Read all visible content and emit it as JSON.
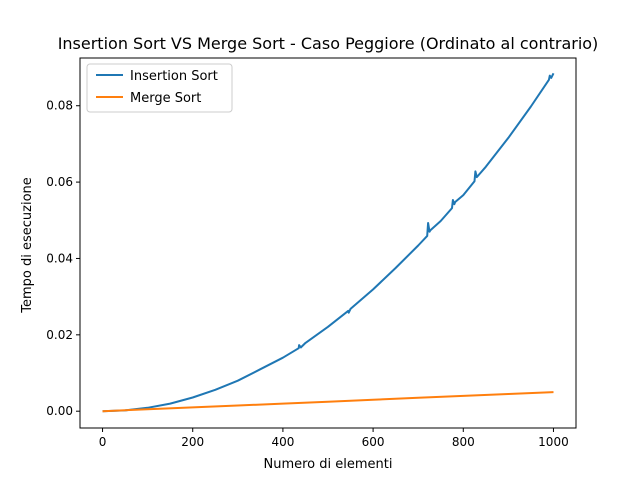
{
  "chart_data": {
    "type": "line",
    "title": "Insertion Sort VS Merge Sort - Caso Peggiore (Ordinato al contrario)",
    "xlabel": "Numero di elementi",
    "ylabel": "Tempo di esecuzione",
    "xlim": [
      -50,
      1050
    ],
    "ylim": [
      -0.0044,
      0.0925
    ],
    "xticks": [
      0,
      200,
      400,
      600,
      800,
      1000
    ],
    "xtick_labels": [
      "0",
      "200",
      "400",
      "600",
      "800",
      "1000"
    ],
    "yticks": [
      0.0,
      0.02,
      0.04,
      0.06,
      0.08
    ],
    "ytick_labels": [
      "0.00",
      "0.02",
      "0.04",
      "0.06",
      "0.08"
    ],
    "grid": false,
    "legend_position": "top-left",
    "series": [
      {
        "name": "Insertion Sort",
        "color": "#1f77b4",
        "x": [
          0,
          50,
          100,
          150,
          200,
          250,
          300,
          350,
          400,
          435,
          436,
          440,
          450,
          500,
          545,
          546,
          550,
          600,
          650,
          700,
          720,
          722,
          725,
          727,
          750,
          775,
          777,
          780,
          782,
          800,
          825,
          827,
          830,
          850,
          900,
          950,
          990,
          992,
          995,
          1000
        ],
        "y": [
          0.0,
          0.0002,
          0.0009,
          0.002,
          0.0036,
          0.0056,
          0.008,
          0.011,
          0.014,
          0.0165,
          0.0173,
          0.0167,
          0.0179,
          0.0221,
          0.0263,
          0.0258,
          0.0268,
          0.0319,
          0.0375,
          0.0434,
          0.0459,
          0.0493,
          0.047,
          0.0474,
          0.0498,
          0.0532,
          0.0553,
          0.0542,
          0.0548,
          0.0566,
          0.0602,
          0.0628,
          0.0613,
          0.064,
          0.0716,
          0.0798,
          0.0868,
          0.0879,
          0.0873,
          0.0885
        ]
      },
      {
        "name": "Merge Sort",
        "color": "#ff7f0e",
        "x": [
          0,
          100,
          200,
          300,
          400,
          500,
          600,
          700,
          800,
          900,
          1000
        ],
        "y": [
          0.0,
          0.0005,
          0.001,
          0.0015,
          0.002,
          0.0025,
          0.003,
          0.0035,
          0.004,
          0.0045,
          0.005
        ]
      }
    ]
  }
}
